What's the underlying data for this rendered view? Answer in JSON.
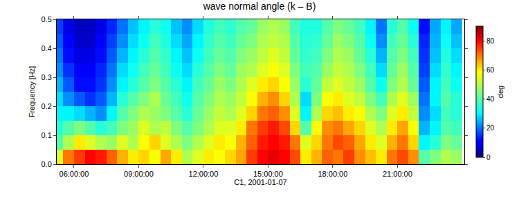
{
  "chart_data": {
    "type": "heatmap",
    "title": "wave normal angle (k – B)",
    "x_label": "C1, 2001-01-07",
    "y_label": "Frequency [Hz]",
    "x": [
      5.25,
      5.75,
      6.25,
      6.75,
      7.25,
      7.75,
      8.25,
      8.75,
      9.25,
      9.75,
      10.25,
      10.75,
      11.25,
      11.75,
      12.25,
      12.75,
      13.25,
      13.75,
      14.25,
      14.75,
      15.25,
      15.75,
      16.25,
      16.75,
      17.25,
      17.75,
      18.25,
      18.75,
      19.25,
      19.75,
      20.25,
      20.75,
      21.25,
      21.75,
      22.25,
      22.75,
      23.25,
      23.75
    ],
    "y": [
      0.025,
      0.075,
      0.125,
      0.175,
      0.225,
      0.275,
      0.325,
      0.375,
      0.425,
      0.475
    ],
    "cells": [
      [
        55,
        70,
        75,
        80,
        78,
        72,
        65,
        60,
        62,
        58,
        66,
        60,
        50,
        55,
        60,
        58,
        62,
        66,
        75,
        80,
        82,
        80,
        74,
        60,
        65,
        72,
        70,
        75,
        68,
        64,
        60,
        70,
        74,
        68,
        40,
        45,
        50,
        48
      ],
      [
        40,
        50,
        60,
        55,
        50,
        48,
        55,
        50,
        58,
        62,
        55,
        50,
        45,
        50,
        55,
        60,
        58,
        65,
        72,
        78,
        80,
        78,
        70,
        55,
        62,
        70,
        74,
        72,
        66,
        60,
        55,
        65,
        70,
        62,
        30,
        35,
        45,
        42
      ],
      [
        35,
        40,
        45,
        40,
        35,
        38,
        45,
        48,
        55,
        50,
        52,
        45,
        40,
        45,
        50,
        55,
        55,
        60,
        70,
        75,
        78,
        74,
        62,
        40,
        58,
        68,
        70,
        66,
        62,
        55,
        50,
        60,
        66,
        58,
        25,
        30,
        40,
        38
      ],
      [
        30,
        30,
        28,
        25,
        22,
        30,
        40,
        45,
        50,
        48,
        45,
        40,
        35,
        42,
        48,
        52,
        50,
        55,
        62,
        70,
        72,
        68,
        55,
        30,
        50,
        62,
        64,
        60,
        58,
        50,
        45,
        55,
        60,
        52,
        22,
        28,
        38,
        35
      ],
      [
        28,
        22,
        18,
        15,
        18,
        25,
        35,
        40,
        45,
        50,
        42,
        38,
        32,
        40,
        45,
        50,
        48,
        52,
        58,
        65,
        68,
        62,
        50,
        28,
        45,
        58,
        60,
        55,
        52,
        45,
        38,
        50,
        55,
        48,
        20,
        30,
        40,
        35
      ],
      [
        25,
        18,
        12,
        12,
        15,
        22,
        30,
        35,
        40,
        45,
        40,
        35,
        30,
        38,
        42,
        48,
        45,
        50,
        55,
        60,
        62,
        58,
        48,
        35,
        42,
        52,
        55,
        52,
        48,
        40,
        32,
        45,
        50,
        42,
        18,
        30,
        38,
        32
      ],
      [
        22,
        15,
        10,
        10,
        14,
        20,
        28,
        32,
        38,
        42,
        38,
        32,
        28,
        35,
        40,
        45,
        42,
        48,
        50,
        55,
        58,
        55,
        45,
        38,
        40,
        48,
        52,
        50,
        45,
        38,
        28,
        42,
        48,
        40,
        16,
        28,
        36,
        30
      ],
      [
        20,
        12,
        8,
        8,
        12,
        18,
        25,
        30,
        35,
        40,
        36,
        30,
        26,
        32,
        38,
        42,
        40,
        45,
        48,
        52,
        55,
        52,
        42,
        36,
        38,
        45,
        50,
        48,
        42,
        35,
        25,
        40,
        45,
        38,
        15,
        26,
        34,
        28
      ],
      [
        18,
        10,
        6,
        6,
        10,
        16,
        22,
        28,
        32,
        38,
        34,
        28,
        24,
        30,
        36,
        40,
        38,
        42,
        45,
        50,
        52,
        50,
        40,
        35,
        36,
        42,
        48,
        45,
        40,
        32,
        22,
        38,
        42,
        35,
        14,
        25,
        32,
        26
      ],
      [
        16,
        8,
        5,
        5,
        8,
        14,
        20,
        26,
        30,
        35,
        32,
        26,
        22,
        28,
        34,
        38,
        36,
        40,
        42,
        48,
        50,
        48,
        38,
        34,
        34,
        40,
        45,
        42,
        38,
        30,
        20,
        35,
        40,
        32,
        12,
        24,
        30,
        24
      ]
    ],
    "xlim": [
      5.2,
      24.1
    ],
    "xticks": [
      {
        "value": 6,
        "label": "06:00:00"
      },
      {
        "value": 9,
        "label": "09:00:00"
      },
      {
        "value": 12,
        "label": "12:00:00"
      },
      {
        "value": 15,
        "label": "15:00:00"
      },
      {
        "value": 18,
        "label": "18:00:00"
      },
      {
        "value": 21,
        "label": "21:00:00"
      }
    ],
    "ylim": [
      0,
      0.5
    ],
    "yticks": [
      {
        "value": 0,
        "label": "0.0"
      },
      0.1,
      0.2,
      0.3,
      0.4,
      0.5
    ],
    "colorbar": {
      "range": [
        0,
        90
      ],
      "ticks": [
        0,
        20,
        40,
        60,
        80
      ],
      "title": "deg"
    },
    "grid": false
  }
}
